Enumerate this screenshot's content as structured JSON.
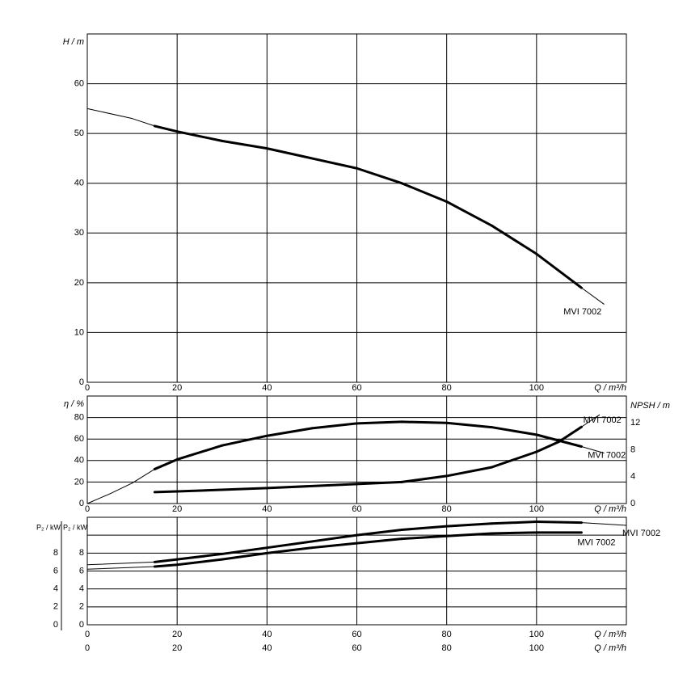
{
  "chart_data": [
    {
      "type": "line",
      "ylabel": "H / m",
      "xlabel": "Q / m³/h",
      "xlim": [
        0,
        120
      ],
      "xticks": [
        0,
        20,
        40,
        60,
        80,
        100
      ],
      "ylim": [
        0,
        70
      ],
      "yticks": [
        0,
        10,
        20,
        30,
        40,
        50,
        60
      ],
      "grid": true,
      "operating_range": [
        15,
        110
      ],
      "series": [
        {
          "name": "MVI 7002",
          "color": "#000000",
          "x": [
            0,
            10,
            15,
            20,
            30,
            40,
            50,
            60,
            70,
            80,
            90,
            100,
            110,
            115
          ],
          "values": [
            55,
            53,
            51.5,
            50.4,
            48.5,
            47,
            45,
            43,
            40,
            36.3,
            31.5,
            25.8,
            19,
            15.7
          ]
        }
      ]
    },
    {
      "type": "line",
      "ylabel": "η / %",
      "y2label": "NPSH / m",
      "xlabel": "Q / m³/h",
      "xlim": [
        0,
        120
      ],
      "xticks": [
        0,
        20,
        40,
        60,
        80,
        100
      ],
      "ylim": [
        0,
        100
      ],
      "yticks": [
        0,
        20,
        40,
        60,
        80
      ],
      "y2lim": [
        0,
        16
      ],
      "y2ticks": [
        0,
        4,
        8,
        12
      ],
      "grid": true,
      "operating_range": [
        15,
        110
      ],
      "series": [
        {
          "name": "MVI 7002",
          "color": "#000000",
          "axis": "y2",
          "x": [
            15,
            20,
            40,
            60,
            70,
            80,
            90,
            100,
            105,
            110,
            114
          ],
          "values": [
            1.7,
            1.8,
            2.3,
            2.9,
            3.2,
            4.1,
            5.4,
            7.7,
            9.2,
            11.4,
            13.2
          ]
        },
        {
          "name": "MVI 7002",
          "color": "#000000",
          "x": [
            0,
            5,
            10,
            15,
            20,
            30,
            40,
            50,
            60,
            70,
            80,
            90,
            100,
            110,
            115
          ],
          "values": [
            0,
            9,
            19,
            32,
            41,
            54,
            63,
            70,
            74.5,
            76,
            75,
            71,
            64,
            53,
            47
          ]
        }
      ]
    },
    {
      "type": "line",
      "ylabel": "P₂ / kW",
      "xlabel": "Q / m³/h",
      "xlim": [
        0,
        120
      ],
      "xticks": [
        0,
        20,
        40,
        60,
        80,
        100
      ],
      "ylim": [
        0,
        12
      ],
      "yticks": [
        0,
        2,
        4,
        6,
        8
      ],
      "ygrid": [
        2,
        4,
        6,
        8,
        10
      ],
      "grid": true,
      "operating_range": [
        15,
        110
      ],
      "series": [
        {
          "name": "MVI 7002",
          "color": "#000000",
          "x": [
            0,
            15,
            20,
            30,
            40,
            50,
            60,
            70,
            80,
            90,
            100,
            110,
            120
          ],
          "values": [
            6.7,
            7.0,
            7.3,
            7.9,
            8.6,
            9.3,
            10.0,
            10.6,
            11.0,
            11.3,
            11.5,
            11.4,
            11.1
          ]
        },
        {
          "name": "MVI 7002",
          "color": "#000000",
          "x": [
            0,
            15,
            20,
            30,
            40,
            50,
            60,
            70,
            80,
            90,
            100,
            110
          ],
          "values": [
            6.2,
            6.5,
            6.7,
            7.3,
            8.0,
            8.6,
            9.1,
            9.6,
            9.9,
            10.2,
            10.3,
            10.3
          ]
        }
      ]
    }
  ]
}
